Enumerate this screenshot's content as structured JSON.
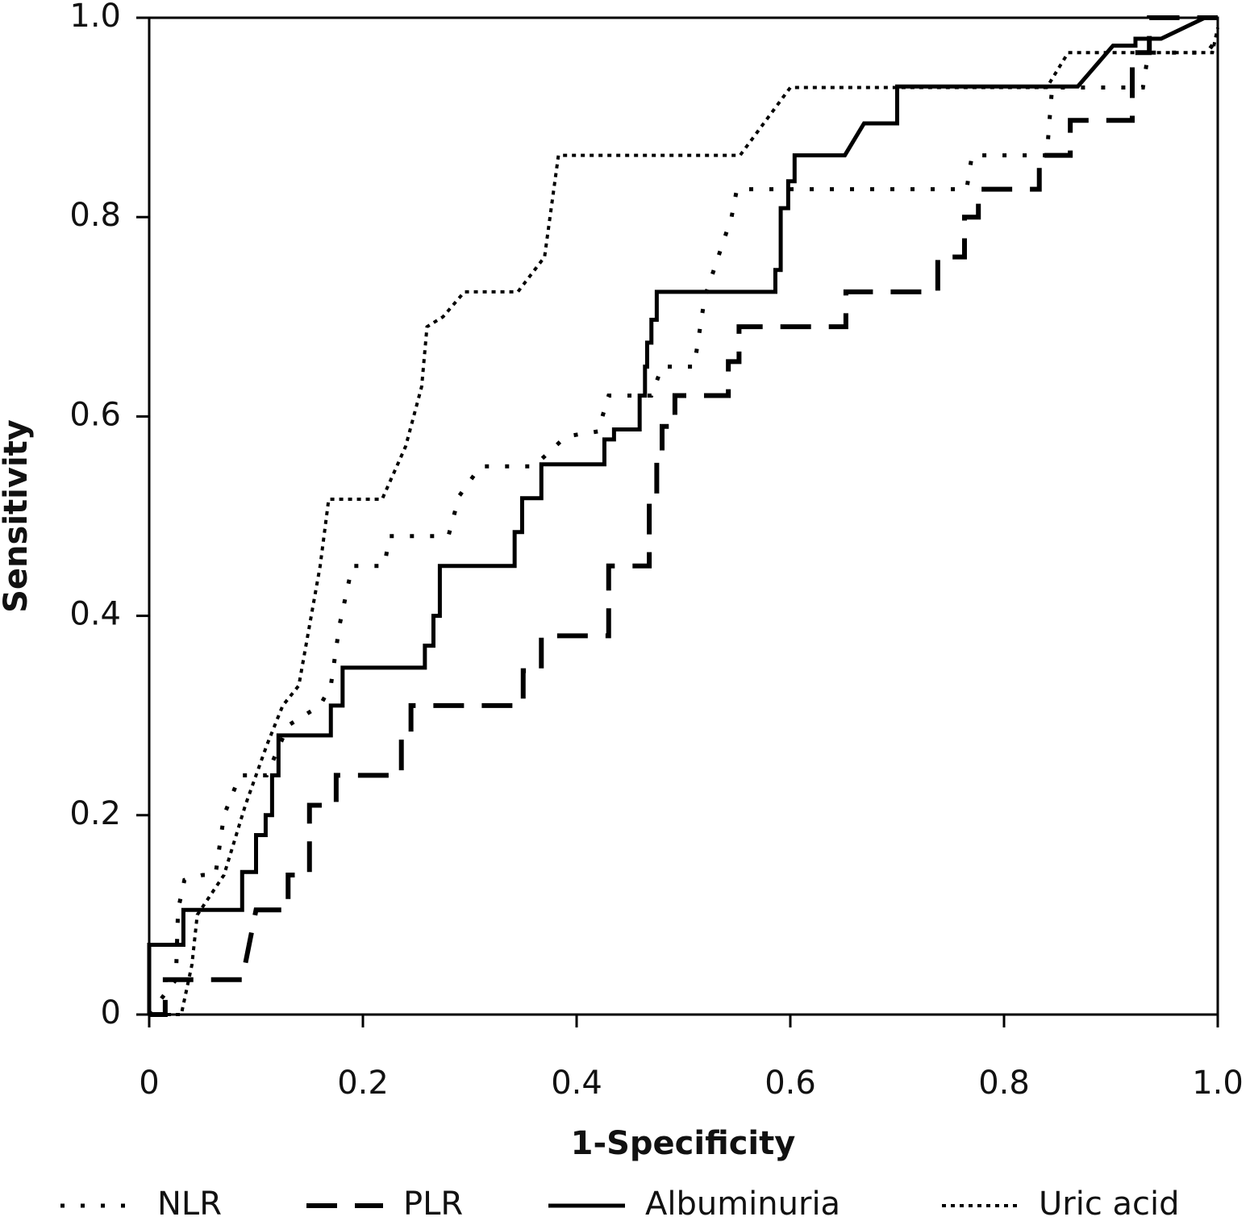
{
  "chart_data": {
    "type": "line",
    "x_label": "1-Specificity",
    "y_label": "Sensitivity",
    "xlim": [
      0,
      1
    ],
    "ylim": [
      0,
      1
    ],
    "xticks": [
      0,
      0.2,
      0.4,
      0.6,
      0.8,
      {
        "value": 1,
        "label": "1.0"
      }
    ],
    "yticks": [
      0,
      0.2,
      0.4,
      0.6,
      0.8,
      {
        "value": 1,
        "label": "1.0"
      }
    ],
    "series": [
      {
        "name": "NLR",
        "color": "#000000",
        "dash": "sparse-dots",
        "x": [
          0,
          0.025,
          0.027,
          0.033,
          0.05,
          0.062,
          0.07,
          0.085,
          0.11,
          0.13,
          0.16,
          0.17,
          0.178,
          0.19,
          0.22,
          0.225,
          0.28,
          0.29,
          0.31,
          0.36,
          0.39,
          0.42,
          0.43,
          0.47,
          0.48,
          0.51,
          0.52,
          0.545,
          0.55,
          0.765,
          0.77,
          0.84,
          0.845,
          0.93,
          0.935,
          0.99,
          1
        ],
        "values": [
          0,
          0.035,
          0.105,
          0.135,
          0.14,
          0.14,
          0.2,
          0.24,
          0.24,
          0.29,
          0.31,
          0.33,
          0.39,
          0.45,
          0.45,
          0.48,
          0.48,
          0.52,
          0.55,
          0.55,
          0.58,
          0.585,
          0.621,
          0.621,
          0.65,
          0.65,
          0.72,
          0.8,
          0.828,
          0.828,
          0.862,
          0.862,
          0.93,
          0.93,
          0.965,
          0.965,
          0.98
        ]
      },
      {
        "name": "PLR",
        "color": "#000000",
        "dash": "dashed",
        "x": [
          0,
          0.015,
          0.015,
          0.087,
          0.1,
          0.13,
          0.13,
          0.15,
          0.15,
          0.175,
          0.175,
          0.236,
          0.236,
          0.245,
          0.245,
          0.35,
          0.35,
          0.367,
          0.367,
          0.43,
          0.43,
          0.468,
          0.468,
          0.475,
          0.475,
          0.48,
          0.48,
          0.492,
          0.492,
          0.542,
          0.542,
          0.552,
          0.552,
          0.652,
          0.652,
          0.738,
          0.738,
          0.763,
          0.763,
          0.776,
          0.776,
          0.833,
          0.833,
          0.862,
          0.862,
          0.92,
          0.92,
          0.936,
          0.936,
          1
        ],
        "values": [
          0,
          0,
          0.035,
          0.035,
          0.105,
          0.105,
          0.14,
          0.14,
          0.21,
          0.21,
          0.24,
          0.24,
          0.28,
          0.28,
          0.31,
          0.31,
          0.345,
          0.345,
          0.38,
          0.38,
          0.45,
          0.45,
          0.52,
          0.52,
          0.56,
          0.56,
          0.59,
          0.59,
          0.621,
          0.621,
          0.655,
          0.655,
          0.69,
          0.69,
          0.725,
          0.725,
          0.76,
          0.76,
          0.8,
          0.8,
          0.828,
          0.828,
          0.862,
          0.862,
          0.897,
          0.897,
          0.965,
          0.965,
          1,
          1
        ]
      },
      {
        "name": "Albuminuria",
        "color": "#000000",
        "dash": "solid",
        "x": [
          0,
          0,
          0.032,
          0.032,
          0.087,
          0.087,
          0.1,
          0.1,
          0.109,
          0.109,
          0.115,
          0.115,
          0.121,
          0.121,
          0.17,
          0.17,
          0.181,
          0.181,
          0.258,
          0.258,
          0.266,
          0.266,
          0.272,
          0.272,
          0.342,
          0.342,
          0.349,
          0.349,
          0.367,
          0.367,
          0.426,
          0.426,
          0.435,
          0.435,
          0.459,
          0.459,
          0.464,
          0.464,
          0.466,
          0.466,
          0.47,
          0.47,
          0.475,
          0.475,
          0.586,
          0.586,
          0.591,
          0.591,
          0.598,
          0.598,
          0.604,
          0.604,
          0.651,
          0.669,
          0.7,
          0.7,
          0.869,
          0.902,
          0.923,
          0.923,
          0.947,
          0.988,
          1
        ],
        "values": [
          0,
          0.07,
          0.07,
          0.105,
          0.105,
          0.143,
          0.143,
          0.18,
          0.18,
          0.2,
          0.2,
          0.24,
          0.24,
          0.28,
          0.28,
          0.31,
          0.31,
          0.348,
          0.348,
          0.37,
          0.37,
          0.4,
          0.4,
          0.45,
          0.45,
          0.484,
          0.484,
          0.518,
          0.518,
          0.552,
          0.552,
          0.577,
          0.577,
          0.587,
          0.587,
          0.621,
          0.621,
          0.65,
          0.65,
          0.674,
          0.674,
          0.697,
          0.697,
          0.725,
          0.725,
          0.747,
          0.747,
          0.809,
          0.809,
          0.836,
          0.836,
          0.862,
          0.862,
          0.894,
          0.894,
          0.931,
          0.931,
          0.972,
          0.972,
          0.979,
          0.979,
          1,
          1
        ]
      },
      {
        "name": "Uric acid",
        "color": "#000000",
        "dash": "dense-dots",
        "x": [
          0,
          0.03,
          0.04,
          0.045,
          0.07,
          0.09,
          0.11,
          0.125,
          0.14,
          0.16,
          0.168,
          0.218,
          0.24,
          0.255,
          0.26,
          0.275,
          0.295,
          0.345,
          0.37,
          0.383,
          0.553,
          0.6,
          0.84,
          0.86,
          0.995,
          1
        ],
        "values": [
          0,
          0,
          0.05,
          0.1,
          0.14,
          0.21,
          0.27,
          0.31,
          0.33,
          0.45,
          0.517,
          0.517,
          0.57,
          0.63,
          0.69,
          0.7,
          0.725,
          0.725,
          0.76,
          0.862,
          0.862,
          0.93,
          0.93,
          0.965,
          0.965,
          0.99
        ]
      }
    ]
  }
}
